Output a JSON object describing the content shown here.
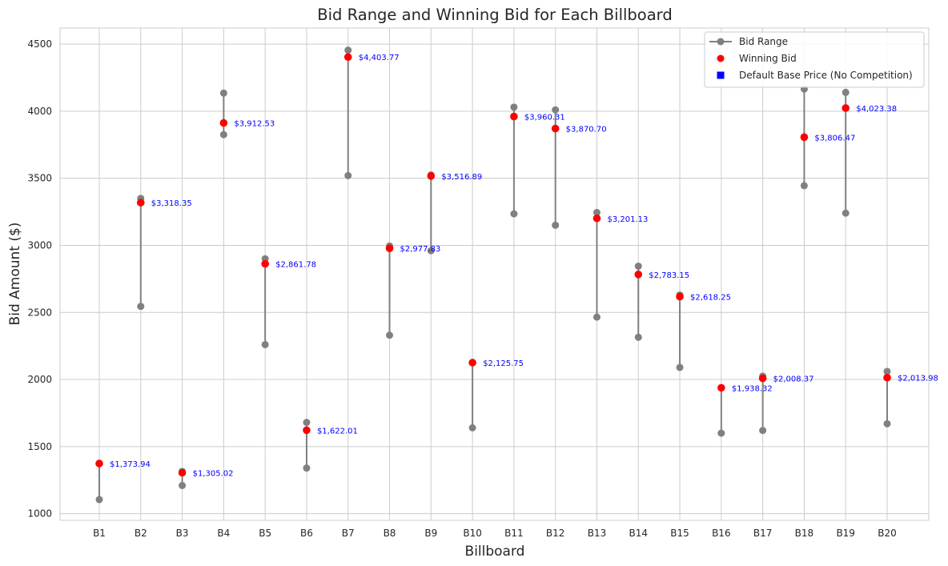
{
  "chart_data": {
    "type": "scatter",
    "title": "Bid Range and Winning Bid for Each Billboard",
    "xlabel": "Billboard",
    "ylabel": "Bid Amount ($)",
    "ylim": [
      950,
      4620
    ],
    "yticks": [
      1000,
      1500,
      2000,
      2500,
      3000,
      3500,
      4000,
      4500
    ],
    "grid": true,
    "legend_position": "top-right",
    "categories": [
      "B1",
      "B2",
      "B3",
      "B4",
      "B5",
      "B6",
      "B7",
      "B8",
      "B9",
      "B10",
      "B11",
      "B12",
      "B13",
      "B14",
      "B15",
      "B16",
      "B17",
      "B18",
      "B19",
      "B20"
    ],
    "series": [
      {
        "name": "Bid Range",
        "color": "#808080",
        "low": [
          1105,
          2545,
          1210,
          3825,
          2260,
          1340,
          3520,
          2330,
          2960,
          1640,
          3235,
          3150,
          2465,
          2315,
          2090,
          1600,
          1620,
          3445,
          3240,
          1670
        ],
        "high": [
          1373.94,
          3350,
          1315,
          4135,
          2900,
          1680,
          4455,
          2995,
          3525,
          2125.75,
          4030,
          4010,
          3245,
          2845,
          2630,
          1938.32,
          2025,
          4165,
          4140,
          2060
        ]
      },
      {
        "name": "Winning Bid",
        "color": "#ff0000",
        "values": [
          1373.94,
          3318.35,
          1305.02,
          3912.53,
          2861.78,
          1622.01,
          4403.77,
          2977.83,
          3516.89,
          2125.75,
          3960.31,
          3870.7,
          3201.13,
          2783.15,
          2618.25,
          1938.32,
          2008.37,
          3806.47,
          4023.38,
          2013.98
        ]
      },
      {
        "name": "Default Base Price (No Competition)",
        "color": "#0000ff",
        "values": []
      }
    ],
    "data_labels": [
      "$1,373.94",
      "$3,318.35",
      "$1,305.02",
      "$3,912.53",
      "$2,861.78",
      "$1,622.01",
      "$4,403.77",
      "$2,977.83",
      "$3,516.89",
      "$2,125.75",
      "$3,960.31",
      "$3,870.70",
      "$3,201.13",
      "$2,783.15",
      "$2,618.25",
      "$1,938.32",
      "$2,008.37",
      "$3,806.47",
      "$4,023.38",
      "$2,013.98"
    ],
    "label_color": "#0000ff"
  }
}
